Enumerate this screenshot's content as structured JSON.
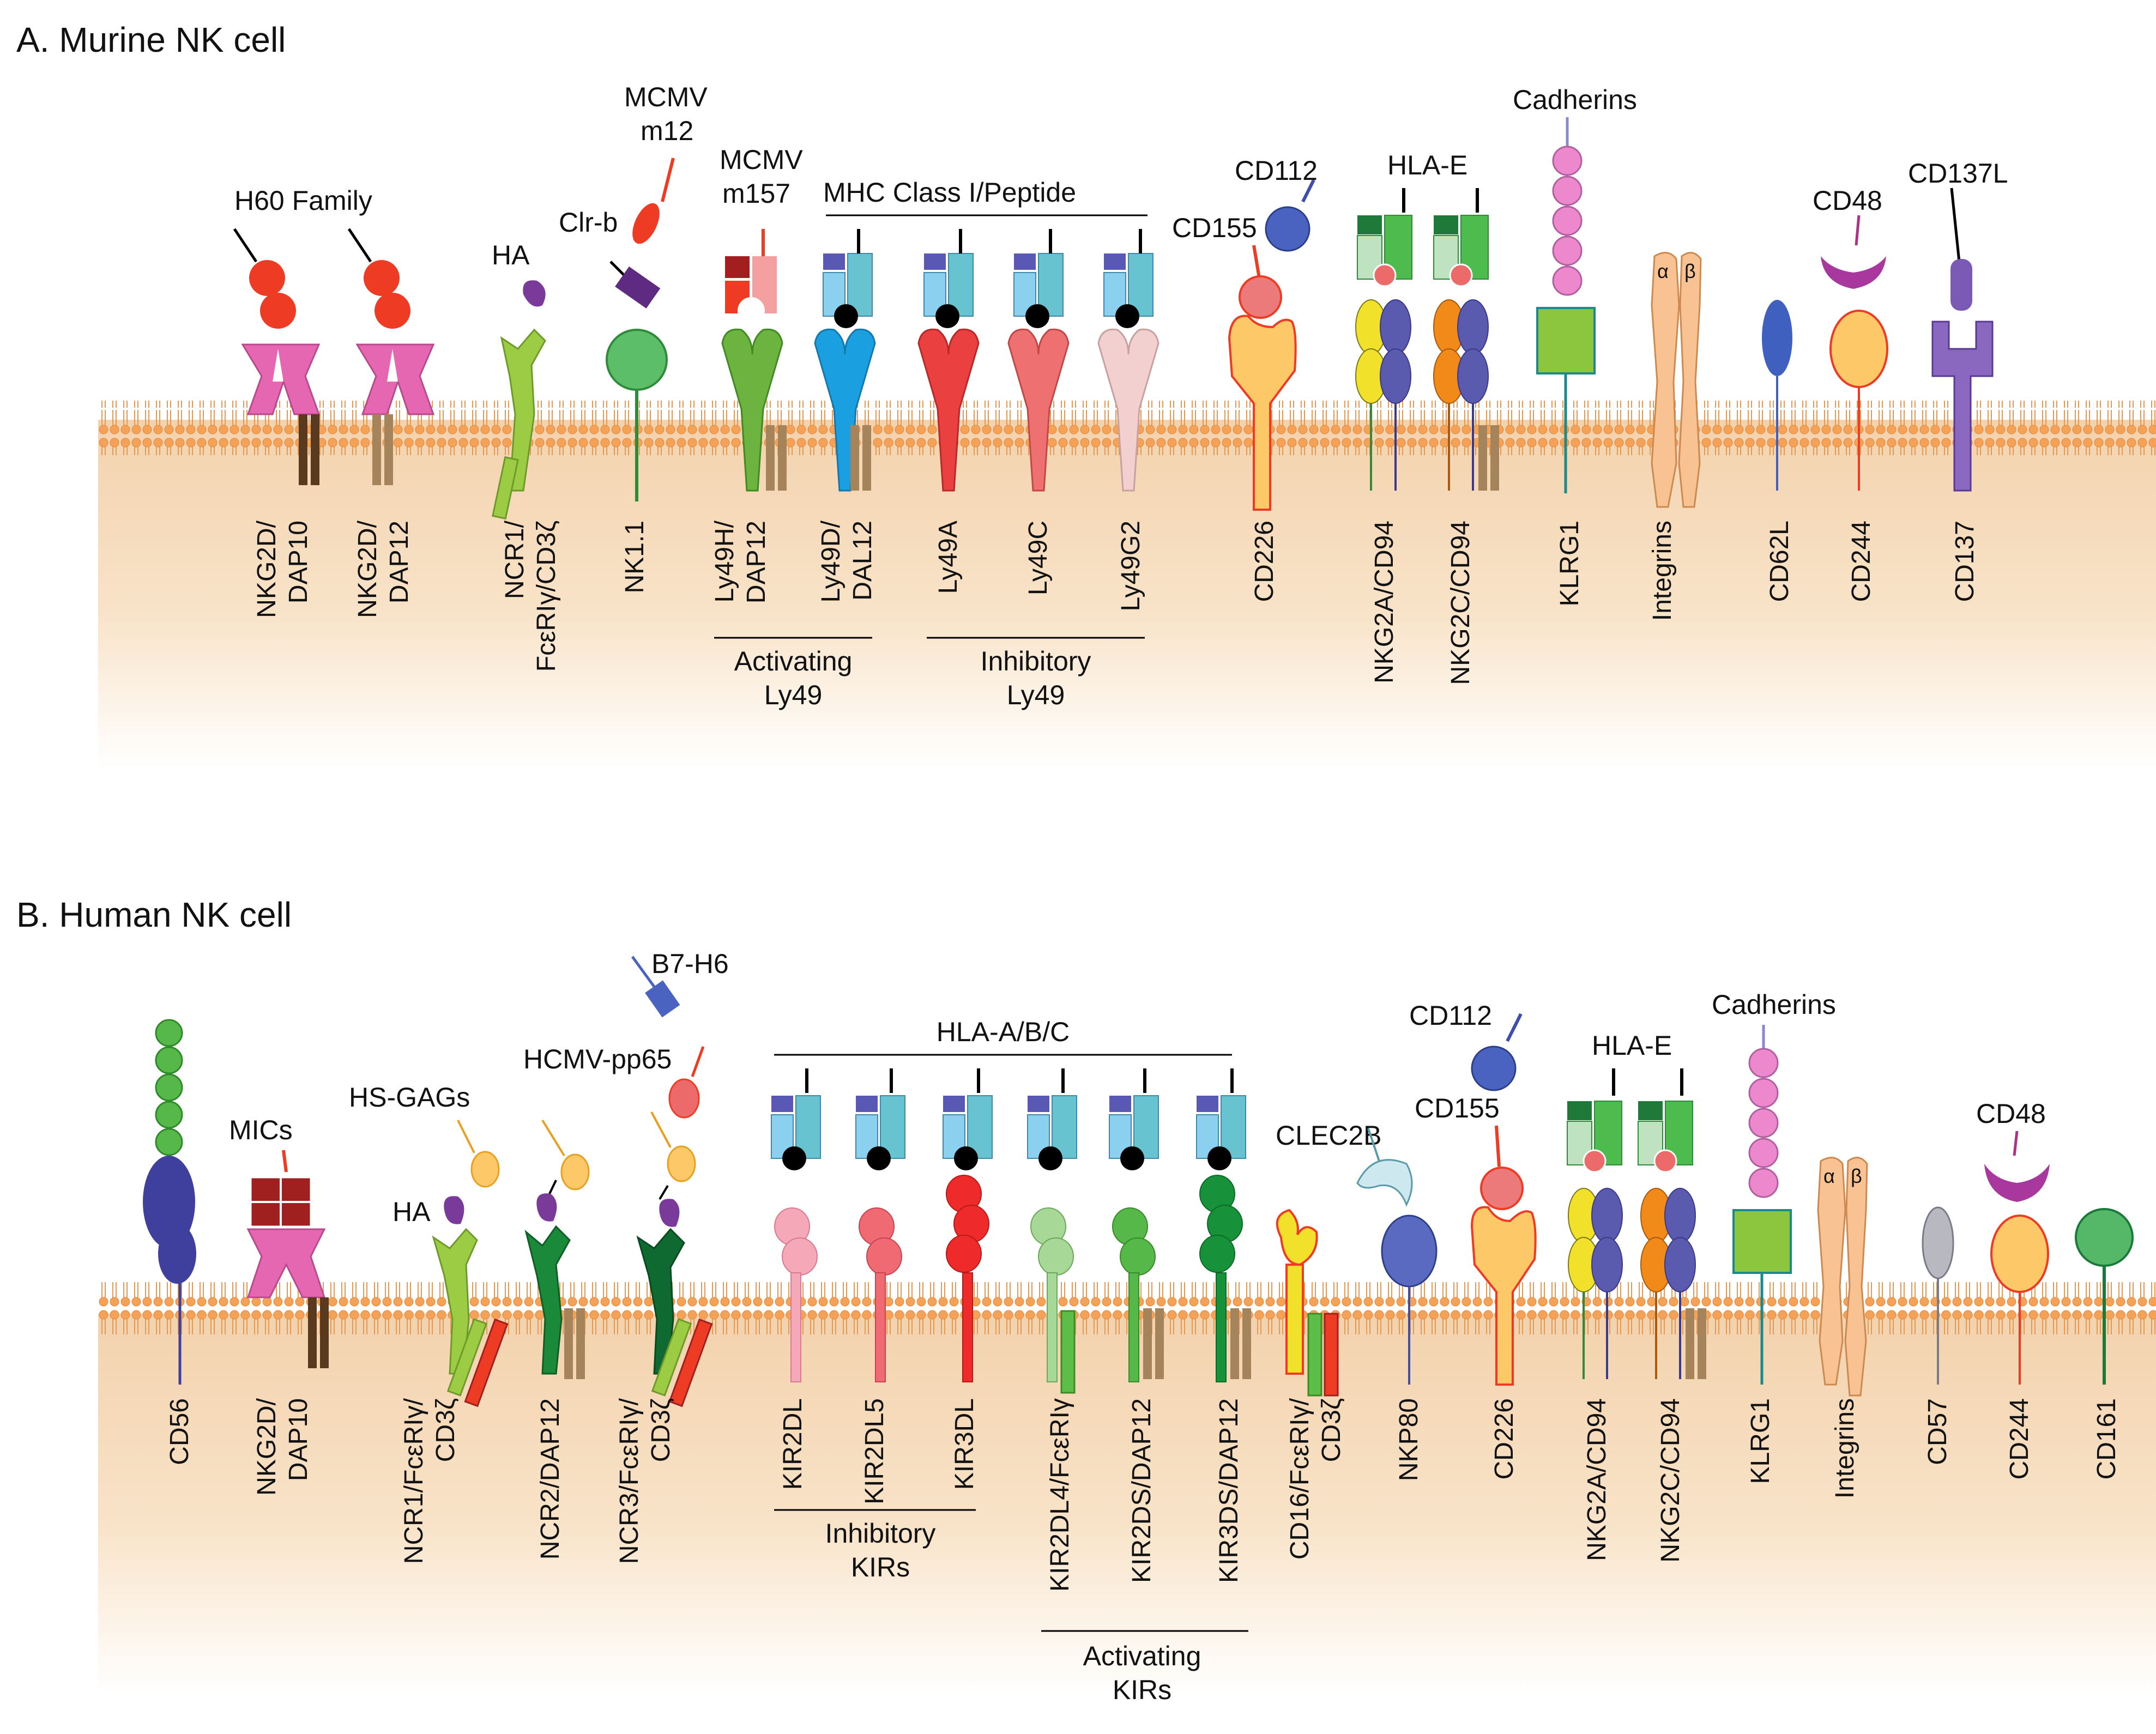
{
  "panels": [
    {
      "title": "A. Murine NK cell",
      "receptors": [
        "NKG2D/DAP10",
        "NKG2D/DAP12",
        "NCR1/FcεRIγ/CD3ζ",
        "NK1.1",
        "Ly49H/DAP12",
        "Ly49D/DAL12",
        "Ly49A",
        "Ly49C",
        "Ly49G2",
        "CD226",
        "NKG2A/CD94",
        "NKG2C/CD94",
        "KLRG1",
        "Integrins",
        "CD62L",
        "CD244",
        "CD137"
      ],
      "ligands": [
        "H60 Family",
        "HA",
        "Clr-b",
        "MCMV m12",
        "MCMV m157",
        "MHC Class I/Peptide",
        "CD112",
        "CD155",
        "HLA-E",
        "Cadherins",
        "CD48",
        "CD137L"
      ],
      "groups": [
        "Activating Ly49",
        "Inhibitory Ly49"
      ]
    },
    {
      "title": "B. Human NK cell",
      "receptors": [
        "CD56",
        "NKG2D/DAP10",
        "NCR1/FcεRIγ/CD3ζ",
        "NCR2/DAP12",
        "NCR3/FcεRIγ/CD3ζ",
        "KIR2DL",
        "KIR2DL5",
        "KIR3DL",
        "KIR2DL4/FcεRIγ",
        "KIR2DS/DAP12",
        "KIR3DS/DAP12",
        "CD16/FcεRIγ/CD3ζ",
        "NKP80",
        "CD226",
        "NKG2A/CD94",
        "NKG2C/CD94",
        "KLRG1",
        "Integrins",
        "CD57",
        "CD244",
        "CD161"
      ],
      "ligands": [
        "MICs",
        "HS-GAGs",
        "HA",
        "B7-H6",
        "HCMV-pp65",
        "HLA-A/B/C",
        "CLEC2B",
        "CD112",
        "CD155",
        "HLA-E",
        "Cadherins",
        "CD48"
      ],
      "groups": [
        "Inhibitory KIRs",
        "Activating KIRs"
      ]
    }
  ],
  "integrin_subunits": [
    "α",
    "β"
  ]
}
